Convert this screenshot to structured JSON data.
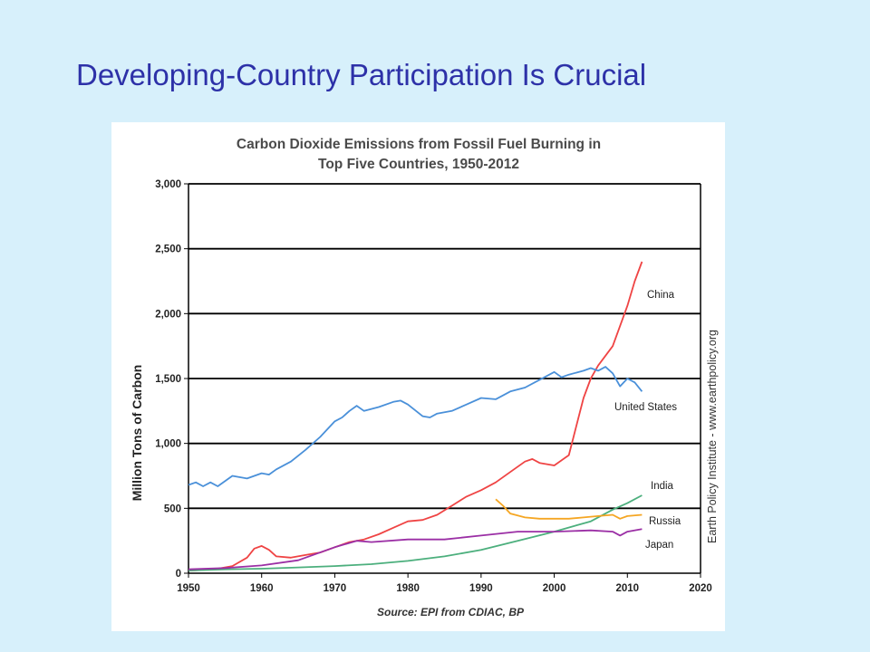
{
  "slide": {
    "title": "Developing-Country Participation Is Crucial"
  },
  "colors": {
    "background": "#d7f0fb",
    "title": "#2d31a8",
    "china": "#ef4444",
    "us": "#4a90d9",
    "india": "#4caf7d",
    "russia": "#f5a623",
    "japan": "#9b2fa5"
  },
  "chart_data": {
    "type": "line",
    "title_line1": "Carbon Dioxide Emissions from Fossil Fuel Burning in",
    "title_line2": "Top Five  Countries, 1950-2012",
    "ylabel": "Million Tons of Carbon",
    "xlabel": "",
    "source": "Source: EPI from CDIAC, BP",
    "credit": "Earth Policy Institute - www.earthpolicy.org",
    "xlim": [
      1950,
      2020
    ],
    "ylim": [
      0,
      3000
    ],
    "x_ticks": [
      "1950",
      "1960",
      "1970",
      "1980",
      "1990",
      "2000",
      "2010",
      "2020"
    ],
    "y_ticks": [
      "0",
      "500",
      "1,000",
      "1,500",
      "2,000",
      "2,500",
      "3,000"
    ],
    "grid": "horizontal",
    "series": [
      {
        "name": "China",
        "color": "#ef4444",
        "x": [
          1950,
          1952,
          1954,
          1956,
          1958,
          1959,
          1960,
          1961,
          1962,
          1964,
          1966,
          1968,
          1970,
          1972,
          1974,
          1976,
          1978,
          1980,
          1982,
          1984,
          1986,
          1988,
          1990,
          1992,
          1994,
          1996,
          1997,
          1998,
          2000,
          2002,
          2004,
          2005,
          2006,
          2008,
          2010,
          2011,
          2012
        ],
        "y": [
          20,
          25,
          35,
          55,
          120,
          190,
          210,
          180,
          130,
          120,
          140,
          160,
          200,
          240,
          260,
          300,
          350,
          400,
          410,
          450,
          520,
          590,
          640,
          700,
          780,
          860,
          880,
          850,
          830,
          910,
          1350,
          1500,
          1600,
          1750,
          2060,
          2250,
          2400
        ]
      },
      {
        "name": "United States",
        "color": "#4a90d9",
        "x": [
          1950,
          1951,
          1952,
          1953,
          1954,
          1956,
          1958,
          1960,
          1961,
          1962,
          1964,
          1966,
          1968,
          1970,
          1971,
          1972,
          1973,
          1974,
          1976,
          1978,
          1979,
          1980,
          1982,
          1983,
          1984,
          1986,
          1988,
          1990,
          1992,
          1994,
          1996,
          1998,
          2000,
          2001,
          2002,
          2004,
          2005,
          2006,
          2007,
          2008,
          2009,
          2010,
          2011,
          2012
        ],
        "y": [
          680,
          700,
          670,
          700,
          670,
          750,
          730,
          770,
          760,
          800,
          860,
          950,
          1050,
          1170,
          1200,
          1250,
          1290,
          1250,
          1280,
          1320,
          1330,
          1300,
          1210,
          1200,
          1230,
          1250,
          1300,
          1350,
          1340,
          1400,
          1430,
          1490,
          1550,
          1510,
          1530,
          1560,
          1580,
          1560,
          1590,
          1540,
          1440,
          1500,
          1470,
          1400
        ]
      },
      {
        "name": "India",
        "color": "#4caf7d",
        "x": [
          1950,
          1955,
          1960,
          1965,
          1970,
          1975,
          1980,
          1985,
          1990,
          1995,
          2000,
          2005,
          2008,
          2010,
          2012
        ],
        "y": [
          20,
          30,
          35,
          45,
          55,
          70,
          95,
          130,
          180,
          250,
          320,
          400,
          490,
          540,
          600
        ]
      },
      {
        "name": "Russia",
        "color": "#f5a623",
        "x": [
          1992,
          1993,
          1994,
          1996,
          1998,
          2000,
          2002,
          2004,
          2006,
          2008,
          2009,
          2010,
          2012
        ],
        "y": [
          570,
          520,
          460,
          430,
          420,
          420,
          420,
          430,
          440,
          450,
          420,
          440,
          450
        ]
      },
      {
        "name": "Japan",
        "color": "#9b2fa5",
        "x": [
          1950,
          1955,
          1960,
          1965,
          1970,
          1973,
          1975,
          1980,
          1985,
          1990,
          1995,
          2000,
          2005,
          2008,
          2009,
          2010,
          2012
        ],
        "y": [
          30,
          40,
          60,
          100,
          200,
          250,
          240,
          260,
          260,
          290,
          320,
          320,
          330,
          320,
          290,
          320,
          340
        ]
      }
    ]
  }
}
